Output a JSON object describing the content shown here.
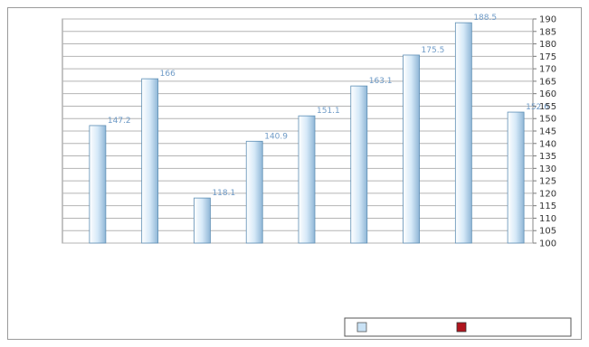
{
  "chart_data": {
    "type": "bar",
    "orientation": "vertical",
    "y_axis_side": "right",
    "ylim": [
      100,
      190
    ],
    "y_tick_step": 5,
    "grid": true,
    "legend_position": "bottom-right",
    "series": [
      {
        "color": "#b0151e",
        "values": [
          null,
          null,
          null,
          null,
          null,
          null,
          null,
          null,
          null
        ]
      },
      {
        "color": "#c9e2f5",
        "values": [
          147.2,
          166.0,
          118.1,
          140.9,
          151.1,
          163.1,
          175.5,
          188.5,
          152.6
        ]
      }
    ]
  }
}
